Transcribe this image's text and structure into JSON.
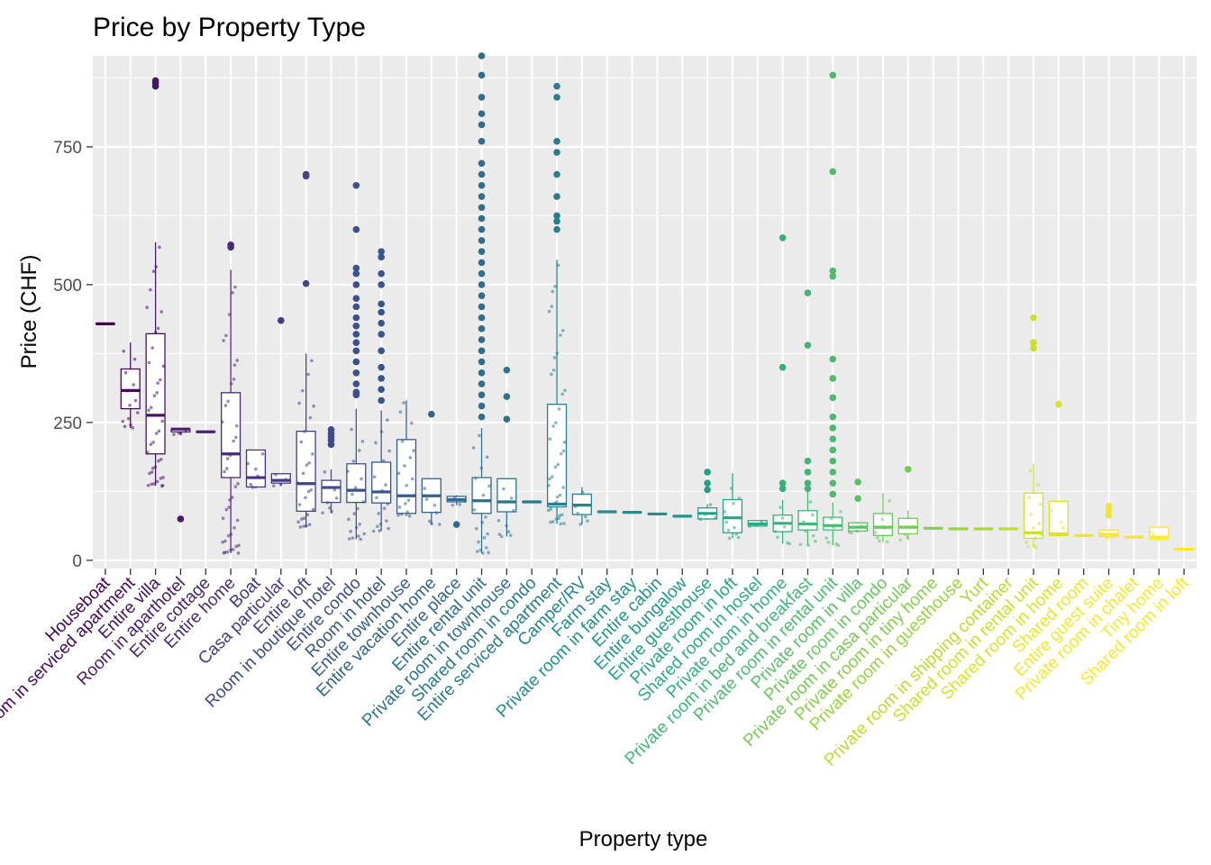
{
  "chart_data": {
    "type": "box",
    "title": "Price by Property Type",
    "xlabel": "Property type",
    "ylabel": "Price (CHF)",
    "ylim": [
      -15,
      915
    ],
    "yticks": [
      0,
      250,
      500,
      750
    ],
    "grid": true,
    "legend": "none",
    "panel_background": "#ebebeb",
    "grid_color": "#ffffff",
    "categories": [
      "Houseboat",
      "Room in serviced apartment",
      "Entire villa",
      "Room in aparthotel",
      "Entire cottage",
      "Entire home",
      "Boat",
      "Casa particular",
      "Entire loft",
      "Room in boutique hotel",
      "Entire condo",
      "Room in hotel",
      "Entire townhouse",
      "Entire vacation home",
      "Entire place",
      "Entire rental unit",
      "Private room in townhouse",
      "Shared room in condo",
      "Entire serviced apartment",
      "Camper/RV",
      "Farm stay",
      "Private room in farm stay",
      "Entire cabin",
      "Entire bungalow",
      "Entire guesthouse",
      "Private room in loft",
      "Shared room in hostel",
      "Private room in home",
      "Private room in bed and breakfast",
      "Private room in rental unit",
      "Private room in villa",
      "Private room in condo",
      "Private room in casa particular",
      "Private room in tiny home",
      "Private room in guesthouse",
      "Yurt",
      "Private room in shipping container",
      "Shared room in rental unit",
      "Shared room in home",
      "Shared room",
      "Entire guest suite",
      "Private room in chalet",
      "Tiny home",
      "Shared room in loft"
    ],
    "colors": [
      "#440154",
      "#460a5d",
      "#471365",
      "#481b6d",
      "#482475",
      "#472c7a",
      "#46337f",
      "#443b84",
      "#424287",
      "#3f4a8a",
      "#3c508b",
      "#39568c",
      "#365c8d",
      "#33638d",
      "#31688e",
      "#2e6e8e",
      "#2c738e",
      "#29798e",
      "#277f8e",
      "#25848e",
      "#23898e",
      "#218f8d",
      "#1f948c",
      "#1f9a8a",
      "#20a086",
      "#24a684",
      "#2aab81",
      "#33b07b",
      "#3fb774",
      "#4bbc6e",
      "#58c166",
      "#67c65d",
      "#77ca54",
      "#87cf49",
      "#98d43d",
      "#a9d834",
      "#badc2c",
      "#cbe027",
      "#dce224",
      "#ece625",
      "#f4e62a",
      "#f8e52f",
      "#fbe734",
      "#fde725"
    ],
    "boxes": [
      {
        "min": 429,
        "q1": 429,
        "median": 429,
        "q3": 429,
        "max": 429,
        "outliers": []
      },
      {
        "min": 240,
        "q1": 275,
        "median": 308,
        "q3": 347,
        "max": 395,
        "outliers": []
      },
      {
        "min": 135,
        "q1": 193,
        "median": 263,
        "q3": 411,
        "max": 577,
        "outliers": [
          860,
          866,
          870
        ]
      },
      {
        "min": 228,
        "q1": 233,
        "median": 238,
        "q3": 238,
        "max": 238,
        "outliers": [
          75
        ]
      },
      {
        "min": 233,
        "q1": 233,
        "median": 233,
        "q3": 233,
        "max": 233,
        "outliers": []
      },
      {
        "min": 13,
        "q1": 150,
        "median": 193,
        "q3": 304,
        "max": 527,
        "outliers": [
          568,
          572
        ]
      },
      {
        "min": 130,
        "q1": 133,
        "median": 150,
        "q3": 200,
        "max": 200,
        "outliers": []
      },
      {
        "min": 135,
        "q1": 140,
        "median": 145,
        "q3": 157,
        "max": 158,
        "outliers": [
          435
        ]
      },
      {
        "min": 60,
        "q1": 89,
        "median": 139,
        "q3": 234,
        "max": 375,
        "outliers": [
          502,
          697,
          700
        ]
      },
      {
        "min": 85,
        "q1": 105,
        "median": 132,
        "q3": 145,
        "max": 165,
        "outliers": [
          210,
          218,
          224,
          230,
          237
        ]
      },
      {
        "min": 38,
        "q1": 105,
        "median": 127,
        "q3": 175,
        "max": 275,
        "outliers": [
          300,
          305,
          320,
          340,
          360,
          380,
          395,
          410,
          425,
          440,
          460,
          475,
          500,
          520,
          530,
          600,
          680
        ]
      },
      {
        "min": 53,
        "q1": 104,
        "median": 124,
        "q3": 178,
        "max": 272,
        "outliers": [
          290,
          310,
          330,
          350,
          380,
          410,
          430,
          450,
          465,
          500,
          520,
          550,
          560
        ]
      },
      {
        "min": 80,
        "q1": 85,
        "median": 117,
        "q3": 219,
        "max": 290,
        "outliers": []
      },
      {
        "min": 65,
        "q1": 87,
        "median": 117,
        "q3": 148,
        "max": 148,
        "outliers": [
          265
        ]
      },
      {
        "min": 100,
        "q1": 106,
        "median": 110,
        "q3": 116,
        "max": 118,
        "outliers": [
          65
        ]
      },
      {
        "min": 13,
        "q1": 85,
        "median": 108,
        "q3": 150,
        "max": 240,
        "outliers": [
          260,
          280,
          300,
          320,
          340,
          360,
          380,
          400,
          420,
          440,
          460,
          480,
          500,
          520,
          540,
          560,
          580,
          600,
          620,
          640,
          660,
          680,
          700,
          720,
          760,
          790,
          810,
          840,
          880,
          915
        ]
      },
      {
        "min": 43,
        "q1": 88,
        "median": 106,
        "q3": 148,
        "max": 148,
        "outliers": [
          256,
          297,
          345
        ]
      },
      {
        "min": 106,
        "q1": 106,
        "median": 106,
        "q3": 106,
        "max": 106,
        "outliers": []
      },
      {
        "min": 66,
        "q1": 97,
        "median": 102,
        "q3": 283,
        "max": 545,
        "outliers": [
          600,
          615,
          625,
          660,
          700,
          740,
          760,
          840,
          860
        ]
      },
      {
        "min": 65,
        "q1": 83,
        "median": 100,
        "q3": 120,
        "max": 133,
        "outliers": []
      },
      {
        "min": 88,
        "q1": 88,
        "median": 88,
        "q3": 88,
        "max": 88,
        "outliers": []
      },
      {
        "min": 87,
        "q1": 87,
        "median": 87,
        "q3": 87,
        "max": 87,
        "outliers": []
      },
      {
        "min": 84,
        "q1": 84,
        "median": 84,
        "q3": 84,
        "max": 84,
        "outliers": []
      },
      {
        "min": 80,
        "q1": 80,
        "median": 80,
        "q3": 80,
        "max": 80,
        "outliers": []
      },
      {
        "min": 73,
        "q1": 75,
        "median": 85,
        "q3": 95,
        "max": 102,
        "outliers": [
          128,
          140,
          160
        ]
      },
      {
        "min": 40,
        "q1": 50,
        "median": 77,
        "q3": 110,
        "max": 158,
        "outliers": []
      },
      {
        "min": 61,
        "q1": 62,
        "median": 66,
        "q3": 72,
        "max": 72,
        "outliers": []
      },
      {
        "min": 30,
        "q1": 52,
        "median": 67,
        "q3": 82,
        "max": 110,
        "outliers": [
          130,
          140,
          350,
          585
        ]
      },
      {
        "min": 27,
        "q1": 55,
        "median": 66,
        "q3": 90,
        "max": 125,
        "outliers": [
          130,
          140,
          160,
          180,
          390,
          485
        ]
      },
      {
        "min": 27,
        "q1": 55,
        "median": 63,
        "q3": 78,
        "max": 105,
        "outliers": [
          120,
          140,
          160,
          180,
          200,
          220,
          240,
          260,
          295,
          330,
          365,
          515,
          525,
          705,
          880
        ]
      },
      {
        "min": 50,
        "q1": 53,
        "median": 60,
        "q3": 68,
        "max": 70,
        "outliers": [
          112,
          142
        ]
      },
      {
        "min": 33,
        "q1": 45,
        "median": 60,
        "q3": 85,
        "max": 122,
        "outliers": []
      },
      {
        "min": 37,
        "q1": 48,
        "median": 60,
        "q3": 76,
        "max": 90,
        "outliers": [
          165
        ]
      },
      {
        "min": 58,
        "q1": 58,
        "median": 58,
        "q3": 58,
        "max": 58,
        "outliers": []
      },
      {
        "min": 57,
        "q1": 57,
        "median": 57,
        "q3": 57,
        "max": 57,
        "outliers": []
      },
      {
        "min": 57,
        "q1": 57,
        "median": 57,
        "q3": 57,
        "max": 57,
        "outliers": []
      },
      {
        "min": 57,
        "q1": 57,
        "median": 57,
        "q3": 57,
        "max": 57,
        "outliers": []
      },
      {
        "min": 23,
        "q1": 40,
        "median": 50,
        "q3": 122,
        "max": 175,
        "outliers": [
          385,
          395,
          440
        ]
      },
      {
        "min": 45,
        "q1": 45,
        "median": 48,
        "q3": 107,
        "max": 107,
        "outliers": [
          283
        ]
      },
      {
        "min": 45,
        "q1": 45,
        "median": 45,
        "q3": 45,
        "max": 45,
        "outliers": []
      },
      {
        "min": 40,
        "q1": 43,
        "median": 47,
        "q3": 55,
        "max": 55,
        "outliers": [
          82,
          90,
          98
        ]
      },
      {
        "min": 42,
        "q1": 42,
        "median": 42,
        "q3": 42,
        "max": 42,
        "outliers": []
      },
      {
        "min": 37,
        "q1": 38,
        "median": 42,
        "q3": 60,
        "max": 60,
        "outliers": []
      },
      {
        "min": 20,
        "q1": 20,
        "median": 20,
        "q3": 20,
        "max": 20,
        "outliers": []
      }
    ]
  }
}
